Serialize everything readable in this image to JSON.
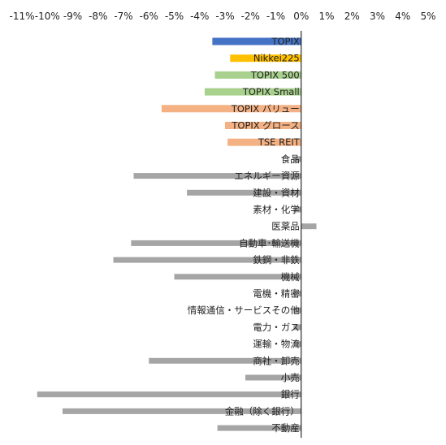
{
  "chart_data": {
    "type": "bar",
    "orientation": "horizontal",
    "x_tick_labels": [
      "-11%",
      "-10%",
      "-9%",
      "-8%",
      "-7%",
      "-6%",
      "-5%",
      "-4%",
      "-3%",
      "-2%",
      "-1%",
      "0%",
      "1%",
      "2%",
      "3%",
      "4%",
      "5%"
    ],
    "xlim": [
      -11,
      5
    ],
    "x_unit": "%",
    "grid": false,
    "legend": "none",
    "categories": [
      "TOPIX",
      "Nikkei225",
      "TOPIX 500",
      "TOPIX Small",
      "TOPIX バリュー",
      "TOPIX グロース",
      "TSE REIT",
      "食品",
      "エネルギー資源",
      "建設・資材",
      "素材・化学",
      "医薬品",
      "自動車･輸送機",
      "鉄鋼・非鉄",
      "機械",
      "電機・精密",
      "情報通信・サービスその他",
      "電力・ガス",
      "運輸・物流",
      "商社・卸売",
      "小売",
      "銀行",
      "金融（除く銀行）",
      "不動産"
    ],
    "values": [
      -3.5,
      -2.8,
      -3.4,
      -3.8,
      -5.5,
      -3.0,
      -2.9,
      -0.3,
      -6.6,
      -4.5,
      -0.3,
      0.6,
      -6.7,
      -7.4,
      -5.0,
      -0.3,
      -0.3,
      -0.3,
      -0.3,
      -6.0,
      -2.2,
      -10.4,
      -9.4,
      -3.3
    ],
    "colors": [
      "#4472c4",
      "#ffc000",
      "#a9d18e",
      "#a9d18e",
      "#f4b183",
      "#f4b183",
      "#f4b183",
      "#a5a5a5",
      "#a5a5a5",
      "#a5a5a5",
      "#a5a5a5",
      "#a5a5a5",
      "#a5a5a5",
      "#a5a5a5",
      "#a5a5a5",
      "#a5a5a5",
      "#a5a5a5",
      "#a5a5a5",
      "#a5a5a5",
      "#a5a5a5",
      "#a5a5a5",
      "#a5a5a5",
      "#a5a5a5",
      "#a5a5a5"
    ],
    "bar_thickness_by_category": [
      "thick",
      "thick",
      "thick",
      "thick",
      "thick",
      "thick",
      "thick",
      "thin",
      "thin",
      "thin",
      "thin",
      "thin",
      "thin",
      "thin",
      "thin",
      "thin",
      "thin",
      "thin",
      "thin",
      "thin",
      "thin",
      "thin",
      "thin",
      "thin"
    ]
  }
}
